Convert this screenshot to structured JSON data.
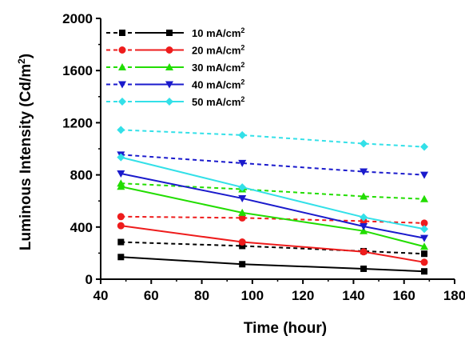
{
  "chart_data": {
    "type": "line",
    "title": "",
    "xlabel": "Time (hour)",
    "ylabel": "Luminous Intensity (Cd/m",
    "ylabel_sup": "2",
    "ylabel_close": ")",
    "xlim": [
      40,
      180
    ],
    "ylim": [
      0,
      2000
    ],
    "xticks": [
      40,
      60,
      80,
      100,
      120,
      140,
      160,
      180
    ],
    "yticks": [
      0,
      400,
      800,
      1200,
      1600,
      2000
    ],
    "grid": false,
    "legend_position": "top-left",
    "x": [
      48,
      96,
      144,
      168
    ],
    "series": [
      {
        "name": "10 mA/cm",
        "sup": "2",
        "color": "#000000",
        "marker": "square",
        "dashed": [
          285,
          255,
          215,
          195
        ],
        "solid": [
          170,
          115,
          80,
          60
        ]
      },
      {
        "name": "20 mA/cm",
        "sup": "2",
        "color": "#ee1c1c",
        "marker": "circle",
        "dashed": [
          480,
          470,
          445,
          430
        ],
        "solid": [
          410,
          285,
          210,
          130
        ]
      },
      {
        "name": "30 mA/cm",
        "sup": "2",
        "color": "#22dd00",
        "marker": "triangle-up",
        "dashed": [
          735,
          690,
          635,
          615
        ],
        "solid": [
          710,
          510,
          370,
          250
        ]
      },
      {
        "name": "40 mA/cm",
        "sup": "2",
        "color": "#1a1acc",
        "marker": "triangle-down",
        "dashed": [
          955,
          890,
          825,
          800
        ],
        "solid": [
          810,
          620,
          405,
          315
        ]
      },
      {
        "name": "50 mA/cm",
        "sup": "2",
        "color": "#33e0e8",
        "marker": "diamond",
        "dashed": [
          1145,
          1105,
          1040,
          1015
        ],
        "solid": [
          935,
          705,
          475,
          385
        ]
      }
    ]
  }
}
